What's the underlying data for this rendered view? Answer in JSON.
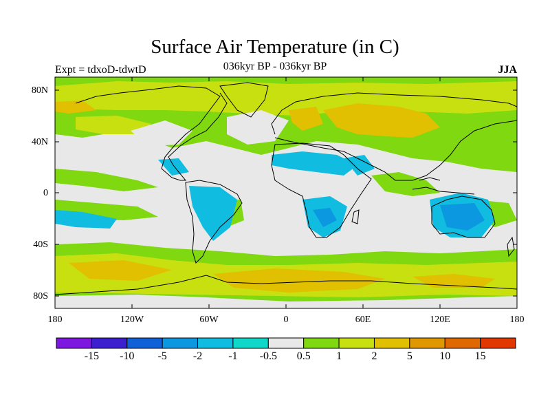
{
  "map": {
    "title": "Surface Air Temperature (in C)",
    "subtitle": "036kyr BP - 036kyr BP",
    "expt_label": "Expt = tdxoD-tdwtD",
    "season": "JJA",
    "lat_ticks": [
      "80N",
      "40N",
      "0",
      "40S",
      "80S"
    ],
    "lon_ticks": [
      "180",
      "120W",
      "60W",
      "0",
      "60E",
      "120E",
      "180"
    ]
  },
  "colorbar": {
    "colors": [
      "#7c18e0",
      "#3c20d0",
      "#1060d8",
      "#0c98e0",
      "#10bce0",
      "#10d8c8",
      "#e8e8e8",
      "#80d810",
      "#c8e010",
      "#e0c000",
      "#e09800",
      "#e06800",
      "#e03800"
    ],
    "labels": [
      "-15",
      "-10",
      "-5",
      "-2",
      "-1",
      "-0.5",
      "0.5",
      "1",
      "2",
      "5",
      "10",
      "15"
    ]
  }
}
